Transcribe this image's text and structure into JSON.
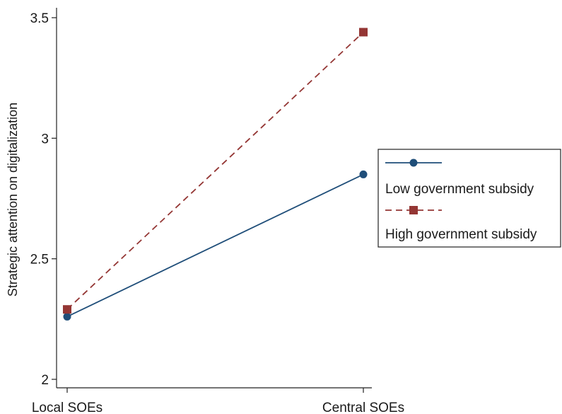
{
  "chart_data": {
    "type": "line",
    "title": "",
    "xlabel": "",
    "ylabel": "Strategic attention on digitalization",
    "categories": [
      "Local SOEs",
      "Central SOEs"
    ],
    "ylim": [
      2,
      3.5
    ],
    "yticks": [
      2,
      2.5,
      3,
      3.5
    ],
    "ytick_labels": [
      "2",
      "2.5",
      "3",
      "3.5"
    ],
    "grid": false,
    "legend_position": "right",
    "series": [
      {
        "name": "Low government subsidy",
        "values": [
          2.26,
          2.85
        ],
        "color": "#1f4e79",
        "marker": "circle",
        "line": "solid"
      },
      {
        "name": "High government subsidy",
        "values": [
          2.29,
          3.44
        ],
        "color": "#943634",
        "marker": "square",
        "line": "dashed"
      }
    ]
  }
}
